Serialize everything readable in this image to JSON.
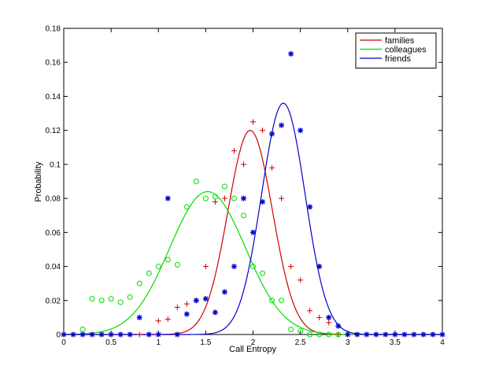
{
  "chart_data": {
    "type": "scatter",
    "xlabel": "Call Entropy",
    "ylabel": "Probability",
    "xlim": [
      0,
      4
    ],
    "ylim": [
      0,
      0.18
    ],
    "x_ticks": [
      "0",
      "0.5",
      "1",
      "1.5",
      "2",
      "2.5",
      "3",
      "3.5",
      "4"
    ],
    "y_ticks": [
      "0",
      "0.02",
      "0.04",
      "0.06",
      "0.08",
      "0.1",
      "0.12",
      "0.14",
      "0.16",
      "0.18"
    ],
    "grid": false,
    "legend_position": "top-right",
    "series": [
      {
        "name": "families",
        "color": "#cc0000",
        "marker": "plus",
        "points": [
          [
            0.8,
            0.0
          ],
          [
            0.9,
            0.0
          ],
          [
            1.0,
            0.008
          ],
          [
            1.1,
            0.009
          ],
          [
            1.2,
            0.016
          ],
          [
            1.3,
            0.018
          ],
          [
            1.4,
            0.02
          ],
          [
            1.5,
            0.04
          ],
          [
            1.6,
            0.078
          ],
          [
            1.7,
            0.08
          ],
          [
            1.8,
            0.108
          ],
          [
            1.9,
            0.1
          ],
          [
            2.0,
            0.125
          ],
          [
            2.1,
            0.12
          ],
          [
            2.2,
            0.098
          ],
          [
            2.3,
            0.08
          ],
          [
            2.4,
            0.04
          ],
          [
            2.5,
            0.032
          ],
          [
            2.6,
            0.014
          ],
          [
            2.7,
            0.01
          ],
          [
            2.8,
            0.007
          ],
          [
            2.9,
            0.0
          ]
        ],
        "fit": {
          "mean": 1.97,
          "std": 0.235,
          "peak": 0.12
        }
      },
      {
        "name": "colleagues",
        "color": "#00dd00",
        "marker": "circle",
        "points": [
          [
            0.2,
            0.003
          ],
          [
            0.3,
            0.021
          ],
          [
            0.4,
            0.02
          ],
          [
            0.5,
            0.021
          ],
          [
            0.6,
            0.019
          ],
          [
            0.7,
            0.022
          ],
          [
            0.8,
            0.03
          ],
          [
            0.9,
            0.036
          ],
          [
            1.0,
            0.04
          ],
          [
            1.1,
            0.044
          ],
          [
            1.2,
            0.041
          ],
          [
            1.3,
            0.075
          ],
          [
            1.4,
            0.09
          ],
          [
            1.5,
            0.08
          ],
          [
            1.6,
            0.081
          ],
          [
            1.7,
            0.087
          ],
          [
            1.8,
            0.08
          ],
          [
            1.9,
            0.07
          ],
          [
            2.0,
            0.04
          ],
          [
            2.1,
            0.036
          ],
          [
            2.2,
            0.02
          ],
          [
            2.3,
            0.02
          ],
          [
            2.4,
            0.003
          ],
          [
            2.5,
            0.002
          ],
          [
            2.6,
            0.0
          ],
          [
            2.7,
            0.0
          ],
          [
            2.8,
            0.0
          ],
          [
            2.9,
            0.0
          ]
        ],
        "fit": {
          "mean": 1.52,
          "std": 0.4,
          "peak": 0.084
        }
      },
      {
        "name": "friends",
        "color": "#0000cc",
        "marker": "star",
        "points": [
          [
            0.0,
            0.0
          ],
          [
            0.1,
            0.0
          ],
          [
            0.2,
            0.0
          ],
          [
            0.3,
            0.0
          ],
          [
            0.4,
            0.0
          ],
          [
            0.5,
            0.0
          ],
          [
            0.6,
            0.0
          ],
          [
            0.7,
            0.0
          ],
          [
            0.8,
            0.01
          ],
          [
            0.9,
            0.0
          ],
          [
            1.0,
            0.0
          ],
          [
            1.1,
            0.08
          ],
          [
            1.2,
            0.0
          ],
          [
            1.3,
            0.012
          ],
          [
            1.4,
            0.02
          ],
          [
            1.5,
            0.021
          ],
          [
            1.6,
            0.013
          ],
          [
            1.7,
            0.025
          ],
          [
            1.8,
            0.04
          ],
          [
            1.9,
            0.08
          ],
          [
            2.0,
            0.06
          ],
          [
            2.1,
            0.078
          ],
          [
            2.2,
            0.118
          ],
          [
            2.3,
            0.123
          ],
          [
            2.4,
            0.165
          ],
          [
            2.5,
            0.12
          ],
          [
            2.6,
            0.075
          ],
          [
            2.7,
            0.04
          ],
          [
            2.8,
            0.01
          ],
          [
            2.9,
            0.005
          ],
          [
            3.0,
            0.0
          ],
          [
            3.1,
            0.0
          ],
          [
            3.2,
            0.0
          ],
          [
            3.3,
            0.0
          ],
          [
            3.4,
            0.0
          ],
          [
            3.5,
            0.0
          ],
          [
            3.6,
            0.0
          ],
          [
            3.7,
            0.0
          ],
          [
            3.8,
            0.0
          ],
          [
            3.9,
            0.0
          ],
          [
            4.0,
            0.0
          ]
        ],
        "fit": {
          "mean": 2.32,
          "std": 0.23,
          "peak": 0.136
        }
      }
    ]
  }
}
